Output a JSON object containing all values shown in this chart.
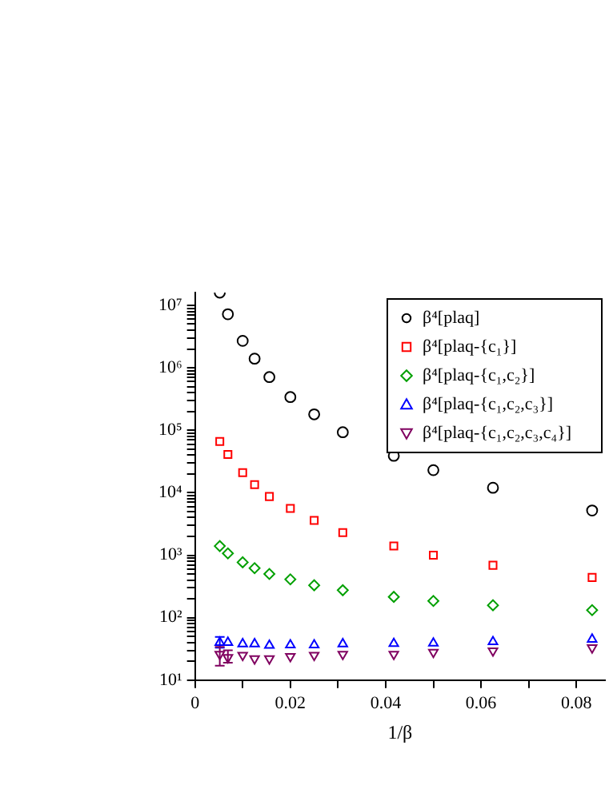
{
  "chart_data": {
    "type": "scatter",
    "xlabel": "1/β",
    "legend": "top right",
    "grid": false,
    "log": "y",
    "xlim": [
      0,
      0.086
    ],
    "xticks": [
      0,
      {
        "value": 0.01,
        "label": null
      },
      0.02,
      {
        "value": 0.03,
        "label": null
      },
      0.04,
      {
        "value": 0.05,
        "label": null
      },
      0.06,
      {
        "value": 0.07,
        "label": null
      },
      0.08
    ],
    "ylim": [
      10,
      16000000
    ],
    "yticks": [
      {
        "value": 10,
        "label": "10¹"
      },
      {
        "value": 20,
        "label": null
      },
      {
        "value": 30,
        "label": null
      },
      {
        "value": 40,
        "label": null
      },
      {
        "value": 50,
        "label": null
      },
      {
        "value": 60,
        "label": null
      },
      {
        "value": 70,
        "label": null
      },
      {
        "value": 80,
        "label": null
      },
      {
        "value": 90,
        "label": null
      },
      {
        "value": 100,
        "label": "10²"
      },
      {
        "value": 200,
        "label": null
      },
      {
        "value": 300,
        "label": null
      },
      {
        "value": 400,
        "label": null
      },
      {
        "value": 500,
        "label": null
      },
      {
        "value": 600,
        "label": null
      },
      {
        "value": 700,
        "label": null
      },
      {
        "value": 800,
        "label": null
      },
      {
        "value": 900,
        "label": null
      },
      {
        "value": 1000,
        "label": "10³"
      },
      {
        "value": 2000,
        "label": null
      },
      {
        "value": 3000,
        "label": null
      },
      {
        "value": 4000,
        "label": null
      },
      {
        "value": 5000,
        "label": null
      },
      {
        "value": 6000,
        "label": null
      },
      {
        "value": 7000,
        "label": null
      },
      {
        "value": 8000,
        "label": null
      },
      {
        "value": 9000,
        "label": null
      },
      {
        "value": 10000,
        "label": "10⁴"
      },
      {
        "value": 20000,
        "label": null
      },
      {
        "value": 30000,
        "label": null
      },
      {
        "value": 40000,
        "label": null
      },
      {
        "value": 50000,
        "label": null
      },
      {
        "value": 60000,
        "label": null
      },
      {
        "value": 70000,
        "label": null
      },
      {
        "value": 80000,
        "label": null
      },
      {
        "value": 90000,
        "label": null
      },
      {
        "value": 100000,
        "label": "10⁵"
      },
      {
        "value": 200000,
        "label": null
      },
      {
        "value": 300000,
        "label": null
      },
      {
        "value": 400000,
        "label": null
      },
      {
        "value": 500000,
        "label": null
      },
      {
        "value": 600000,
        "label": null
      },
      {
        "value": 700000,
        "label": null
      },
      {
        "value": 800000,
        "label": null
      },
      {
        "value": 900000,
        "label": null
      },
      {
        "value": 1000000,
        "label": "10⁶"
      },
      {
        "value": 2000000,
        "label": null
      },
      {
        "value": 3000000,
        "label": null
      },
      {
        "value": 4000000,
        "label": null
      },
      {
        "value": 5000000,
        "label": null
      },
      {
        "value": 6000000,
        "label": null
      },
      {
        "value": 7000000,
        "label": null
      },
      {
        "value": 8000000,
        "label": null
      },
      {
        "value": 9000000,
        "label": null
      },
      {
        "value": 10000000,
        "label": "10⁷"
      }
    ],
    "x": [
      0.0052,
      0.0069,
      0.01,
      0.0125,
      0.0156,
      0.02,
      0.025,
      0.031,
      0.0417,
      0.05,
      0.0625,
      0.0833
    ],
    "series": [
      {
        "name": "β⁴[plaq]",
        "color": "#000000",
        "marker": "circle",
        "values": [
          16000000,
          7200000,
          2700000,
          1400000,
          710000,
          340000,
          180000,
          93000,
          39000,
          23000,
          12000,
          5200
        ]
      },
      {
        "name": "β⁴[plaq-{c₁}]",
        "color": "#ff0000",
        "marker": "square",
        "values": [
          66000,
          41000,
          21000,
          13500,
          8700,
          5600,
          3600,
          2300,
          1400,
          1000,
          690,
          440
        ]
      },
      {
        "name": "β⁴[plaq-{c₁,c₂}]",
        "color": "#00a000",
        "marker": "diamond",
        "values": [
          1400,
          1070,
          770,
          620,
          500,
          410,
          330,
          275,
          215,
          185,
          158,
          132
        ]
      },
      {
        "name": "β⁴[plaq-{c₁,c₂,c₃}]",
        "color": "#0000ff",
        "marker": "triangle",
        "values": [
          40,
          40,
          38,
          38,
          36,
          36.5,
          36.5,
          38,
          38.5,
          39,
          41,
          45
        ],
        "errors": [
          [
            33,
            49
          ],
          null,
          null,
          null,
          null,
          null,
          null,
          null,
          null,
          null,
          null,
          null
        ]
      },
      {
        "name": "β⁴[plaq-{c₁,c₂,c₃,c₄}]",
        "color": "#800060",
        "marker": "triangle-down",
        "values": [
          26,
          23,
          25,
          22,
          22,
          24,
          25,
          26,
          26,
          28,
          29.5,
          33
        ],
        "errors": [
          [
            17,
            34
          ],
          [
            19,
            30
          ],
          null,
          null,
          null,
          null,
          null,
          null,
          null,
          null,
          null,
          null
        ]
      }
    ]
  }
}
